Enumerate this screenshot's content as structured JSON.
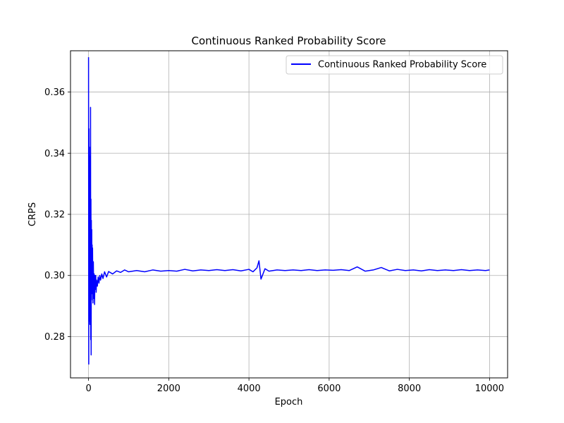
{
  "chart_data": {
    "type": "line",
    "title": "Continuous Ranked Probability Score",
    "xlabel": "Epoch",
    "ylabel": "CRPS",
    "xlim": [
      -450,
      10450
    ],
    "ylim": [
      0.2665,
      0.3735
    ],
    "xticks": [
      0,
      2000,
      4000,
      6000,
      8000,
      10000
    ],
    "yticks": [
      0.28,
      0.3,
      0.32,
      0.34,
      0.36
    ],
    "xtick_labels": [
      "0",
      "2000",
      "4000",
      "6000",
      "8000",
      "10000"
    ],
    "ytick_labels": [
      "0.28",
      "0.30",
      "0.32",
      "0.34",
      "0.36"
    ],
    "grid": true,
    "legend_position": "top-right",
    "series": [
      {
        "name": "Continuous Ranked Probability Score",
        "color": "#0000ff",
        "x": [
          0,
          5,
          10,
          15,
          20,
          25,
          30,
          35,
          40,
          45,
          50,
          55,
          60,
          65,
          70,
          75,
          80,
          85,
          90,
          95,
          100,
          110,
          120,
          130,
          140,
          150,
          160,
          170,
          180,
          190,
          200,
          220,
          240,
          260,
          280,
          300,
          330,
          360,
          400,
          450,
          500,
          600,
          700,
          800,
          900,
          1000,
          1200,
          1400,
          1600,
          1800,
          2000,
          2200,
          2400,
          2600,
          2800,
          3000,
          3200,
          3400,
          3600,
          3800,
          4000,
          4100,
          4200,
          4250,
          4300,
          4400,
          4500,
          4700,
          4900,
          5100,
          5300,
          5500,
          5700,
          5900,
          6100,
          6300,
          6500,
          6700,
          6900,
          7100,
          7300,
          7500,
          7700,
          7900,
          8100,
          8300,
          8500,
          8700,
          8900,
          9100,
          9300,
          9500,
          9700,
          9900,
          10000
        ],
        "y": [
          0.3714,
          0.271,
          0.348,
          0.285,
          0.342,
          0.29,
          0.339,
          0.284,
          0.333,
          0.288,
          0.355,
          0.279,
          0.325,
          0.274,
          0.318,
          0.292,
          0.315,
          0.294,
          0.31,
          0.296,
          0.309,
          0.291,
          0.3045,
          0.2925,
          0.3005,
          0.2905,
          0.3,
          0.2955,
          0.3,
          0.2945,
          0.2985,
          0.2965,
          0.2995,
          0.2975,
          0.3,
          0.2985,
          0.3005,
          0.299,
          0.3012,
          0.2995,
          0.3013,
          0.3005,
          0.3015,
          0.301,
          0.3018,
          0.3012,
          0.3016,
          0.3012,
          0.3018,
          0.3014,
          0.3016,
          0.3014,
          0.302,
          0.3015,
          0.3018,
          0.3016,
          0.3019,
          0.3016,
          0.3019,
          0.3015,
          0.302,
          0.3012,
          0.3025,
          0.3048,
          0.2988,
          0.3022,
          0.3014,
          0.3018,
          0.3016,
          0.3018,
          0.3016,
          0.3019,
          0.3016,
          0.3018,
          0.3017,
          0.3019,
          0.3016,
          0.3028,
          0.3014,
          0.3018,
          0.3026,
          0.3015,
          0.302,
          0.3016,
          0.3018,
          0.3015,
          0.3019,
          0.3016,
          0.3018,
          0.3016,
          0.3019,
          0.3016,
          0.3018,
          0.3016,
          0.3018
        ]
      }
    ]
  }
}
